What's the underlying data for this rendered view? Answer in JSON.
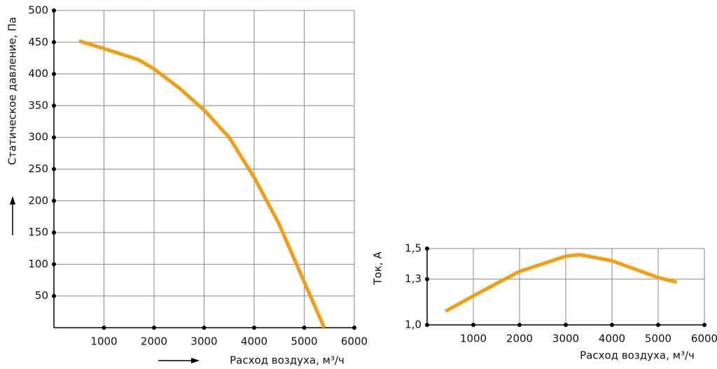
{
  "chart_data": [
    {
      "type": "line",
      "y_label": "Статическое давление, Па",
      "x_label": "Расход воздуха, м³/ч",
      "x": [
        500,
        1000,
        1700,
        2000,
        2500,
        3000,
        3500,
        4000,
        4500,
        5000,
        5400
      ],
      "values": [
        452,
        440,
        422,
        408,
        378,
        343,
        300,
        237,
        163,
        72,
        0
      ],
      "color": "#f59c10",
      "xlim": [
        0,
        6000
      ],
      "xticks": [
        1000,
        2000,
        3000,
        4000,
        5000,
        6000
      ],
      "ylim": [
        0,
        500
      ],
      "yticks": [
        50,
        100,
        150,
        200,
        250,
        300,
        350,
        400,
        450,
        500
      ],
      "grid": true
    },
    {
      "type": "line",
      "y_label": "Ток, А",
      "x_label": "Расход воздуха, м³/ч",
      "x": [
        400,
        1000,
        2000,
        3000,
        3300,
        4000,
        5000,
        5400
      ],
      "values": [
        1.09,
        1.19,
        1.35,
        1.45,
        1.46,
        1.42,
        1.31,
        1.28
      ],
      "color": "#f59c10",
      "xlim": [
        0,
        6000
      ],
      "xticks": [
        1000,
        2000,
        3000,
        4000,
        5000,
        6000
      ],
      "ylim": [
        1,
        1.5
      ],
      "yticks": [
        {
          "value": 1,
          "label": "1,0"
        },
        {
          "value": 1.3,
          "label": "1,3"
        },
        {
          "value": 1.5,
          "label": "1,5"
        }
      ],
      "grid": true
    }
  ]
}
